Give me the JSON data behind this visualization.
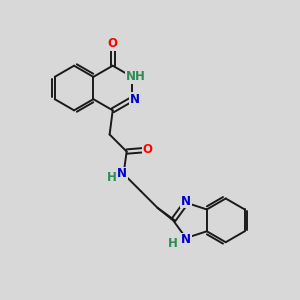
{
  "bg_color": "#d8d8d8",
  "bond_color": "#1a1a1a",
  "atom_colors": {
    "O": "#ff0000",
    "N": "#0000cd",
    "NH": "#2e8b57",
    "C": "#1a1a1a"
  },
  "font_size": 8.5,
  "bond_width": 1.4,
  "dbo": 0.07
}
